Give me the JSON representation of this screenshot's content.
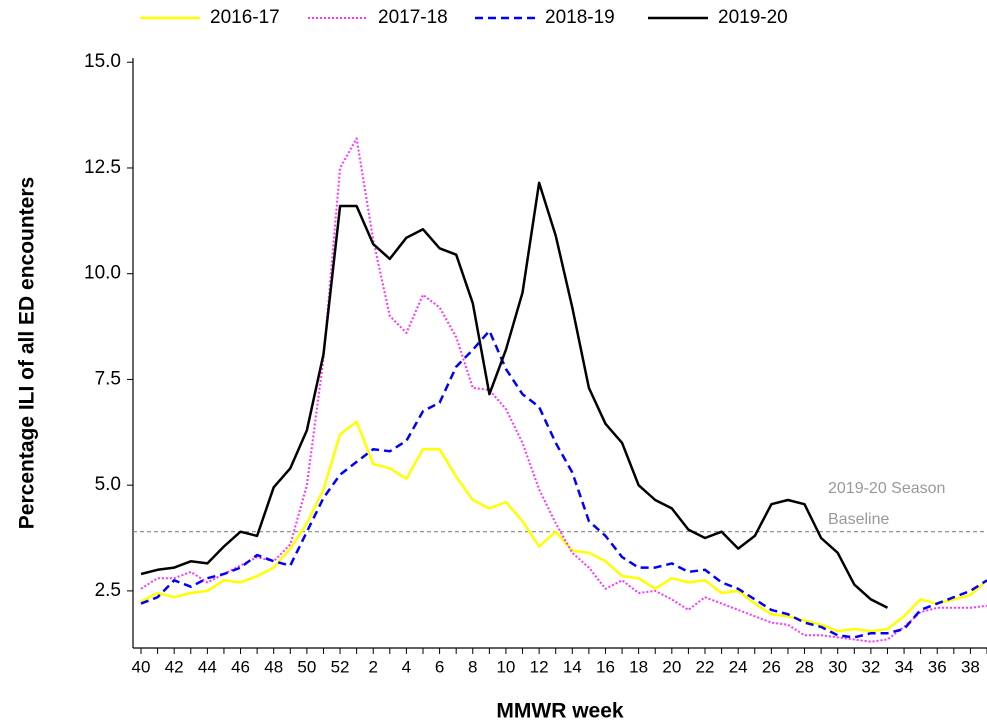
{
  "chart_data": {
    "type": "line",
    "y_label": "Percentage ILI of all ED encounters",
    "x_label": "MMWR week",
    "categories": [
      "40",
      null,
      "42",
      null,
      "44",
      null,
      "46",
      null,
      "48",
      null,
      "50",
      null,
      "52",
      null,
      "2",
      null,
      "4",
      null,
      "6",
      null,
      "8",
      null,
      "10",
      null,
      "12",
      null,
      "14",
      null,
      "16",
      null,
      "18",
      null,
      "20",
      null,
      "22",
      null,
      "24",
      null,
      "26",
      null,
      "28",
      null,
      "30",
      null,
      "32",
      null,
      "34",
      null,
      "36",
      null,
      "38",
      null
    ],
    "series": [
      {
        "name": "2016-17",
        "color": "#ffff00",
        "style": "solid",
        "values": [
          2.25,
          2.45,
          2.35,
          2.45,
          2.5,
          2.75,
          2.7,
          2.85,
          3.05,
          3.5,
          4.1,
          4.9,
          6.2,
          6.5,
          5.5,
          5.4,
          5.15,
          5.85,
          5.85,
          5.2,
          4.65,
          4.45,
          4.6,
          4.15,
          3.55,
          3.9,
          3.45,
          3.4,
          3.2,
          2.85,
          2.8,
          2.55,
          2.8,
          2.7,
          2.75,
          2.45,
          2.5,
          2.2,
          1.95,
          1.9,
          1.8,
          1.7,
          1.55,
          1.6,
          1.55,
          1.6,
          1.9,
          2.3,
          2.2,
          2.3,
          2.4,
          2.75
        ]
      },
      {
        "name": "2017-18",
        "color": "#ff33ff",
        "style": "dotted",
        "values": [
          2.55,
          2.8,
          2.8,
          2.95,
          2.7,
          2.9,
          3.1,
          3.3,
          3.2,
          3.6,
          5.0,
          8.0,
          12.5,
          13.2,
          10.8,
          9.0,
          8.6,
          9.5,
          9.2,
          8.5,
          7.3,
          7.25,
          6.8,
          6.0,
          4.9,
          4.1,
          3.4,
          3.05,
          2.55,
          2.75,
          2.45,
          2.5,
          2.3,
          2.05,
          2.35,
          2.2,
          2.05,
          1.9,
          1.75,
          1.7,
          1.45,
          1.45,
          1.4,
          1.35,
          1.3,
          1.35,
          1.65,
          2.0,
          2.1,
          2.1,
          2.1,
          2.15
        ]
      },
      {
        "name": "2018-19",
        "color": "#0000ff",
        "style": "dashed",
        "values": [
          2.2,
          2.35,
          2.75,
          2.6,
          2.8,
          2.9,
          3.05,
          3.35,
          3.2,
          3.1,
          3.9,
          4.7,
          5.25,
          5.55,
          5.85,
          5.8,
          6.05,
          6.75,
          6.95,
          7.8,
          8.2,
          8.65,
          7.75,
          7.15,
          6.85,
          6.0,
          5.3,
          4.15,
          3.8,
          3.3,
          3.05,
          3.05,
          3.15,
          2.95,
          3.0,
          2.7,
          2.55,
          2.3,
          2.05,
          1.95,
          1.75,
          1.65,
          1.45,
          1.4,
          1.5,
          1.5,
          1.6,
          2.05,
          2.2,
          2.35,
          2.5,
          2.75
        ]
      },
      {
        "name": "2019-20",
        "color": "#000000",
        "style": "solid",
        "values": [
          2.9,
          3.0,
          3.05,
          3.2,
          3.15,
          3.55,
          3.9,
          3.8,
          4.95,
          5.4,
          6.3,
          8.1,
          11.6,
          11.6,
          10.7,
          10.35,
          10.85,
          11.05,
          10.6,
          10.45,
          9.3,
          7.15,
          8.2,
          9.55,
          12.15,
          10.9,
          9.2,
          7.3,
          6.45,
          6.0,
          5.0,
          4.65,
          4.45,
          3.95,
          3.75,
          3.9,
          3.5,
          3.8,
          4.55,
          4.65,
          4.55,
          3.75,
          3.4,
          2.65,
          2.3,
          2.1,
          null,
          null,
          null,
          null,
          null,
          null
        ]
      }
    ],
    "ylim": [
      1.15,
      15.1
    ],
    "yticks": [
      2.5,
      {
        "value": 5,
        "label": "5.0"
      },
      7.5,
      {
        "value": 10,
        "label": "10.0"
      },
      12.5,
      {
        "value": 15,
        "label": "15.0"
      }
    ],
    "baseline": 3.9,
    "baseline_label": [
      "2019-20 Season",
      "Baseline"
    ],
    "legend": "top"
  }
}
